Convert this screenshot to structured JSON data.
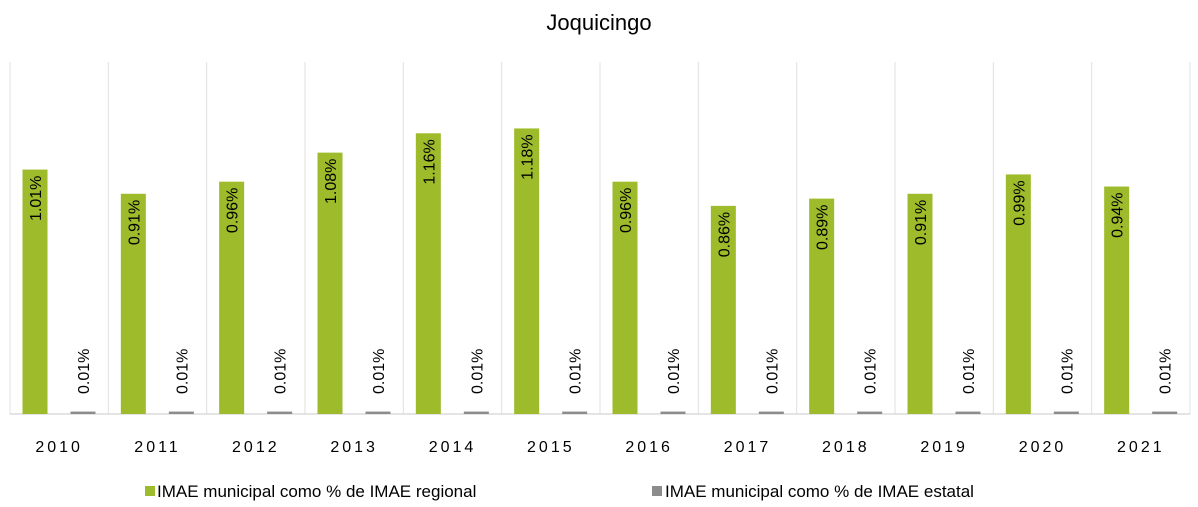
{
  "chart_data": {
    "type": "bar",
    "title": "Joquicingo",
    "categories": [
      "2010",
      "2011",
      "2012",
      "2013",
      "2014",
      "2015",
      "2016",
      "2017",
      "2018",
      "2019",
      "2020",
      "2021"
    ],
    "series": [
      {
        "name": "IMAE municipal como % de IMAE regional",
        "color": "#9dbb2a",
        "values": [
          1.01,
          0.91,
          0.96,
          1.08,
          1.16,
          1.18,
          0.96,
          0.86,
          0.89,
          0.91,
          0.99,
          0.94
        ],
        "value_labels": [
          "1.01%",
          "0.91%",
          "0.96%",
          "1.08%",
          "1.16%",
          "1.18%",
          "0.96%",
          "0.86%",
          "0.89%",
          "0.91%",
          "0.99%",
          "0.94%"
        ]
      },
      {
        "name": "IMAE municipal como % de IMAE estatal",
        "color": "#8c8c8c",
        "values": [
          0.01,
          0.01,
          0.01,
          0.01,
          0.01,
          0.01,
          0.01,
          0.01,
          0.01,
          0.01,
          0.01,
          0.01
        ],
        "value_labels": [
          "0.01%",
          "0.01%",
          "0.01%",
          "0.01%",
          "0.01%",
          "0.01%",
          "0.01%",
          "0.01%",
          "0.01%",
          "0.01%",
          "0.01%",
          "0.01%"
        ]
      }
    ],
    "legend": "bottom"
  }
}
